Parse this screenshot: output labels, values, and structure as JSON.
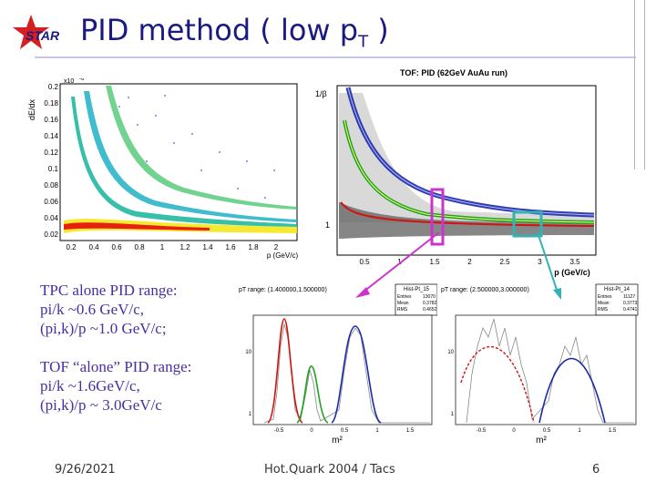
{
  "slide": {
    "title": "PID method ( low p",
    "title_sub": "T",
    "title_end": " )",
    "logo_text": "STAR"
  },
  "tpc_plot": {
    "ylabel": "dE/dx",
    "xlabel": "p (GeV/c)",
    "yexp": "x10",
    "yexp_power": "-6",
    "y_ticks": [
      "0.2",
      "0.18",
      "0.16",
      "0.14",
      "0.12",
      "0.1",
      "0.08",
      "0.06",
      "0.04",
      "0.02"
    ],
    "x_ticks": [
      "0.2",
      "0.4",
      "0.6",
      "0.8",
      "1",
      "1.2",
      "1.4",
      "1.6",
      "1.8",
      "2"
    ]
  },
  "tof_plot": {
    "title": "TOF: PID (62GeV AuAu run)",
    "ylabel": "1/β",
    "xlabel": "p (GeV/c)",
    "y_tick": "1",
    "x_ticks": [
      "0.5",
      "1",
      "1.5",
      "2",
      "2.5",
      "3",
      "3.5"
    ]
  },
  "hist_left": {
    "title": "pT range: (1.400000,1.500000)",
    "stats_name": "Hist-Pt_15",
    "stats_rows": [
      [
        "Entries",
        "13070"
      ],
      [
        "Mean",
        "0.3782"
      ],
      [
        "RMS",
        "0.4652"
      ]
    ],
    "xlabel": "m²",
    "x_ticks": [
      "-0.5",
      "0",
      "0.5",
      "1",
      "1.5"
    ],
    "y_ticks": [
      "10",
      "1"
    ]
  },
  "hist_right": {
    "title": "pT range: (2.500000,3.000000)",
    "stats_name": "Hist-Pt_14",
    "stats_rows": [
      [
        "Entries",
        "11127"
      ],
      [
        "Mean",
        "0.3773"
      ],
      [
        "RMS",
        "0.4741"
      ]
    ],
    "xlabel": "m²",
    "x_ticks": [
      "-0.5",
      "0",
      "0.5",
      "1",
      "1.5"
    ],
    "y_ticks": [
      "10",
      "1"
    ]
  },
  "notes": {
    "tpc": [
      "TPC alone PID range:",
      "pi/k ~0.6 GeV/c,",
      "(pi,k)/p ~1.0 GeV/c;"
    ],
    "tof": [
      "TOF “alone” PID range:",
      "pi/k ~1.6GeV/c,",
      "(pi,k)/p ~ 3.0GeV/c"
    ]
  },
  "footer": {
    "date": "9/26/2021",
    "center": "Hot.Quark 2004 / Tacs",
    "page": "6"
  },
  "colors": {
    "title": "#1a1a80",
    "notes": "#4a2fa0",
    "pion": "#d41010",
    "kaon": "#1fa31f",
    "proton": "#1a2aa8",
    "marker_magenta": "#cc33cc",
    "marker_teal": "#33b3b3"
  }
}
